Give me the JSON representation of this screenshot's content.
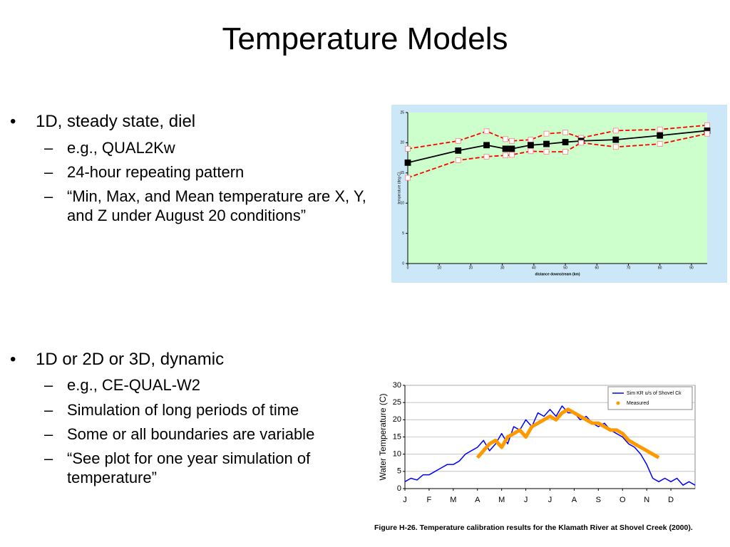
{
  "title": "Temperature Models",
  "bullets": [
    {
      "text": "1D, steady state, diel",
      "sub": [
        "e.g., QUAL2Kw",
        "24-hour repeating pattern",
        "“Min, Max, and Mean temperature are X, Y, and Z under August 20 conditions”"
      ]
    },
    {
      "text": "1D or 2D or 3D, dynamic",
      "sub": [
        "e.g., CE-QUAL-W2",
        "Simulation of long periods of time",
        "Some or all boundaries are variable",
        "“See plot for one year simulation of temperature”"
      ]
    }
  ],
  "chart_data": [
    {
      "type": "line",
      "xlabel": "distance downstream (km)",
      "ylabel": "temperature (deg C)",
      "xlim": [
        0,
        95
      ],
      "xticks": [
        0,
        10,
        20,
        30,
        40,
        50,
        60,
        70,
        80,
        90
      ],
      "ylim": [
        0,
        25
      ],
      "yticks": [
        0,
        5,
        10,
        15,
        20,
        25
      ],
      "background": "#ccffcc",
      "frame": "#cce8f8",
      "series": [
        {
          "x": [
            0,
            16,
            25,
            31,
            33,
            39,
            44,
            50,
            55,
            66,
            80,
            95
          ],
          "values": [
            19.0,
            20.3,
            21.9,
            20.6,
            20.3,
            20.5,
            21.5,
            21.7,
            20.8,
            22.0,
            22.2,
            22.9
          ],
          "color": "#ff0000",
          "linestyle": "dashed",
          "marker": "square-open"
        },
        {
          "x": [
            0,
            16,
            25,
            31,
            33,
            39,
            44,
            50,
            55,
            66,
            80,
            95
          ],
          "values": [
            16.7,
            18.7,
            19.6,
            19.0,
            19.0,
            19.6,
            19.8,
            20.1,
            20.3,
            20.5,
            21.2,
            22.0
          ],
          "color": "#000000",
          "linestyle": "solid",
          "marker": "square-filled"
        },
        {
          "x": [
            0,
            16,
            25,
            31,
            33,
            39,
            44,
            50,
            55,
            66,
            80,
            95
          ],
          "values": [
            14.2,
            17.1,
            17.7,
            17.9,
            18.0,
            18.6,
            18.5,
            18.5,
            20.0,
            19.3,
            19.8,
            21.5
          ],
          "color": "#ff0000",
          "linestyle": "dashed",
          "marker": "square-open"
        }
      ]
    },
    {
      "type": "line",
      "ylabel": "Water Temperature (C)",
      "caption": "Figure H-26.  Temperature calibration results for the Klamath River at Shovel Creek (2000).",
      "xlim": [
        0,
        12
      ],
      "xticks": [
        {
          "value": 0,
          "label": "J"
        },
        {
          "value": 1,
          "label": "F"
        },
        {
          "value": 2,
          "label": "M"
        },
        {
          "value": 3,
          "label": "A"
        },
        {
          "value": 4,
          "label": "M"
        },
        {
          "value": 5,
          "label": "J"
        },
        {
          "value": 6,
          "label": "J"
        },
        {
          "value": 7,
          "label": "A"
        },
        {
          "value": 8,
          "label": "S"
        },
        {
          "value": 9,
          "label": "O"
        },
        {
          "value": 10,
          "label": "N"
        },
        {
          "value": 11,
          "label": "D"
        }
      ],
      "ylim": [
        0,
        30
      ],
      "yticks": [
        0,
        5,
        10,
        15,
        20,
        25,
        30
      ],
      "grid": true,
      "legend": "upper right",
      "series": [
        {
          "name": "Sim KR u/s of Shovel Ck",
          "color": "#0000ff",
          "width": 1.5,
          "x": [
            0,
            0.25,
            0.5,
            0.75,
            1,
            1.25,
            1.5,
            1.75,
            2,
            2.25,
            2.5,
            2.75,
            3,
            3.25,
            3.5,
            3.75,
            4,
            4.25,
            4.5,
            4.75,
            5,
            5.25,
            5.5,
            5.75,
            6,
            6.25,
            6.5,
            6.75,
            7,
            7.25,
            7.5,
            7.75,
            8,
            8.25,
            8.5,
            8.75,
            9,
            9.25,
            9.5,
            9.75,
            10,
            10.25,
            10.5,
            10.75,
            11,
            11.25,
            11.5,
            11.75,
            12
          ],
          "values": [
            2,
            3,
            2.5,
            4,
            4,
            5,
            6,
            7,
            7,
            8,
            10,
            11,
            12,
            14,
            11,
            13,
            16,
            13,
            18,
            17,
            20,
            18,
            22,
            21,
            23,
            21,
            24,
            22,
            22,
            20,
            21,
            19,
            18,
            19,
            17,
            16,
            15,
            13,
            12,
            10,
            7,
            3,
            2,
            3,
            2,
            3,
            1,
            2,
            1
          ]
        },
        {
          "name": "Measured",
          "color": "#ff9900",
          "width": 5,
          "x": [
            3,
            3.25,
            3.5,
            3.75,
            4,
            4.25,
            4.5,
            4.75,
            5,
            5.25,
            5.5,
            5.75,
            6,
            6.25,
            6.5,
            6.75,
            7,
            7.25,
            7.5,
            7.75,
            8,
            8.25,
            8.5,
            8.75,
            9,
            9.25,
            9.5,
            9.75,
            10,
            10.25,
            10.5
          ],
          "values": [
            9,
            11,
            13,
            14,
            12,
            15,
            16,
            17,
            15,
            18,
            19,
            20,
            21,
            20,
            22,
            23,
            22,
            21,
            20,
            19,
            19,
            18,
            17,
            17,
            16,
            14,
            13,
            12,
            11,
            10,
            9
          ]
        }
      ]
    }
  ]
}
